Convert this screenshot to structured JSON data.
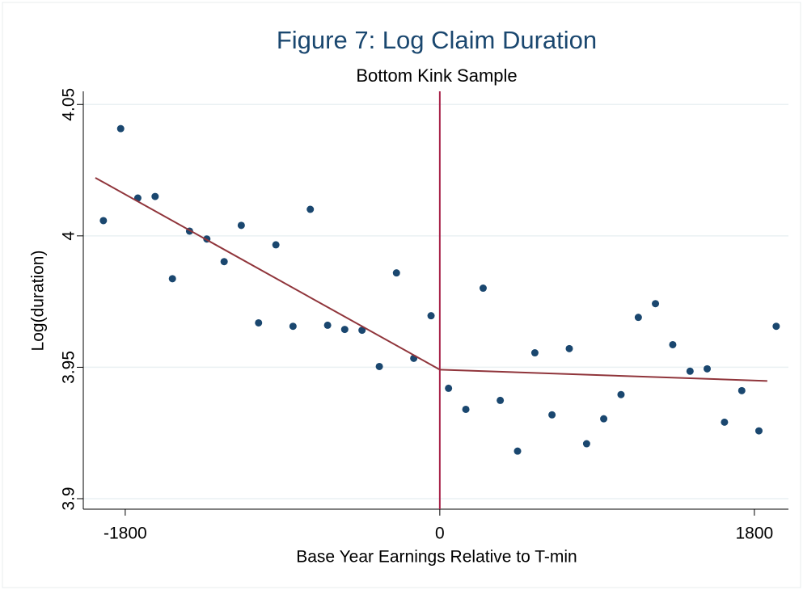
{
  "chart_data": {
    "type": "scatter",
    "title": "Figure 7: Log Claim Duration",
    "subtitle": "Bottom Kink Sample",
    "x_label": "Base Year Earnings Relative to T-min",
    "y_label": "Log(duration)",
    "xlim": [
      -2040,
      1995
    ],
    "ylim": [
      3.896,
      4.055
    ],
    "xticks": [
      -1800,
      0,
      1800
    ],
    "yticks": [
      3.9,
      3.95,
      4,
      4.05
    ],
    "grid": true,
    "vline": 0,
    "vline_color": "#a8234a",
    "series": [
      {
        "type": "scatter",
        "color": "#1a476f",
        "x": [
          -1925,
          -1826,
          -1728,
          -1629,
          -1530,
          -1432,
          -1333,
          -1234,
          -1136,
          -1037,
          -938,
          -840,
          -741,
          -642,
          -544,
          -445,
          -346,
          -248,
          -149,
          -50,
          50,
          149,
          248,
          346,
          445,
          544,
          642,
          741,
          840,
          938,
          1037,
          1136,
          1234,
          1333,
          1432,
          1530,
          1629,
          1728,
          1826,
          1925
        ],
        "values": [
          4.0058,
          4.0408,
          4.0144,
          4.015,
          3.9837,
          4.0018,
          3.9988,
          3.9902,
          4.004,
          3.9669,
          3.9966,
          3.9656,
          4.0101,
          3.966,
          3.9644,
          3.9641,
          3.9503,
          3.9859,
          3.9534,
          3.9696,
          3.942,
          3.934,
          3.9801,
          3.9374,
          3.9181,
          3.9555,
          3.9319,
          3.9571,
          3.9209,
          3.9304,
          3.9396,
          3.969,
          3.9742,
          3.9586,
          3.9485,
          3.9494,
          3.9291,
          3.9411,
          3.9258,
          3.9656
        ]
      },
      {
        "type": "line",
        "color": "#90353b",
        "x": [
          -1971,
          0
        ],
        "values": [
          4.0221,
          3.9491
        ]
      },
      {
        "type": "line",
        "color": "#90353b",
        "x": [
          0,
          1874
        ],
        "values": [
          3.9491,
          3.9448
        ]
      }
    ]
  }
}
